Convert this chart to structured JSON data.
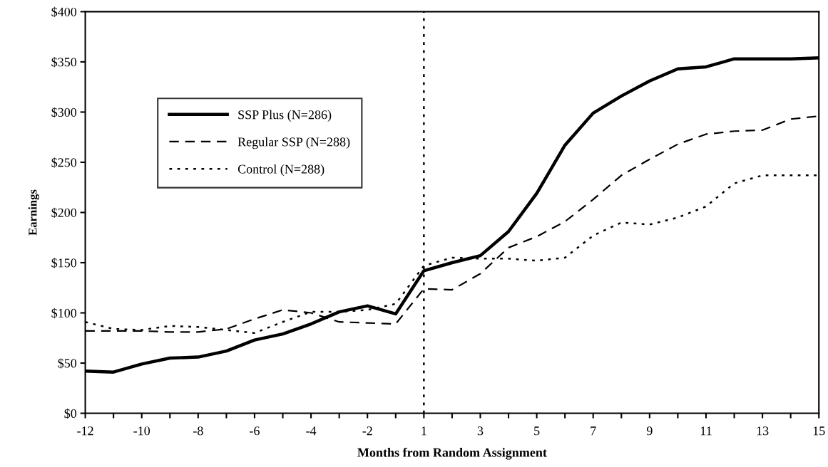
{
  "chart_data": {
    "type": "line",
    "xlabel": "Months from Random Assignment",
    "ylabel": "Earnings",
    "categories": [
      "-12",
      null,
      "-10",
      null,
      "-8",
      null,
      "-6",
      null,
      "-4",
      null,
      "-2",
      null,
      "1",
      null,
      "3",
      null,
      "5",
      null,
      "7",
      null,
      "9",
      null,
      "11",
      null,
      "13",
      null,
      "15"
    ],
    "series": [
      {
        "name": "SSP Plus (N=286)",
        "color": "#000000",
        "line_style": "solid",
        "values": [
          42,
          41,
          49,
          55,
          56,
          62,
          73,
          79,
          89,
          101,
          107,
          99,
          142,
          150,
          157,
          181,
          219,
          267,
          299,
          316,
          331,
          343,
          345,
          353,
          353,
          353,
          354
        ]
      },
      {
        "name": "Regular SSP (N=288)",
        "color": "#000000",
        "line_style": "dashed",
        "values": [
          82,
          82,
          82,
          81,
          81,
          84,
          94,
          103,
          100,
          91,
          90,
          89,
          124,
          123,
          139,
          165,
          176,
          191,
          213,
          237,
          253,
          268,
          278,
          281,
          282,
          293,
          296
        ]
      },
      {
        "name": "Control (N=288)",
        "color": "#000000",
        "line_style": "dotted",
        "values": [
          91,
          84,
          83,
          87,
          86,
          83,
          80,
          91,
          101,
          101,
          103,
          109,
          147,
          155,
          154,
          154,
          152,
          155,
          177,
          190,
          188,
          195,
          206,
          229,
          237,
          237,
          237
        ]
      }
    ],
    "ylim": [
      0,
      400
    ],
    "yticks": [
      {
        "value": 0,
        "label": "$0"
      },
      {
        "value": 50,
        "label": "$50"
      },
      {
        "value": 100,
        "label": "$100"
      },
      {
        "value": 150,
        "label": "$150"
      },
      {
        "value": 200,
        "label": "$200"
      },
      {
        "value": 250,
        "label": "$250"
      },
      {
        "value": 300,
        "label": "$300"
      },
      {
        "value": 350,
        "label": "$350"
      },
      {
        "value": 400,
        "label": "$400"
      }
    ],
    "ref_lines": [
      {
        "axis": "x",
        "value": "1",
        "color": "#000000",
        "line_style": "dotted"
      }
    ],
    "grid": false,
    "legend": "top left",
    "marker": "none"
  }
}
